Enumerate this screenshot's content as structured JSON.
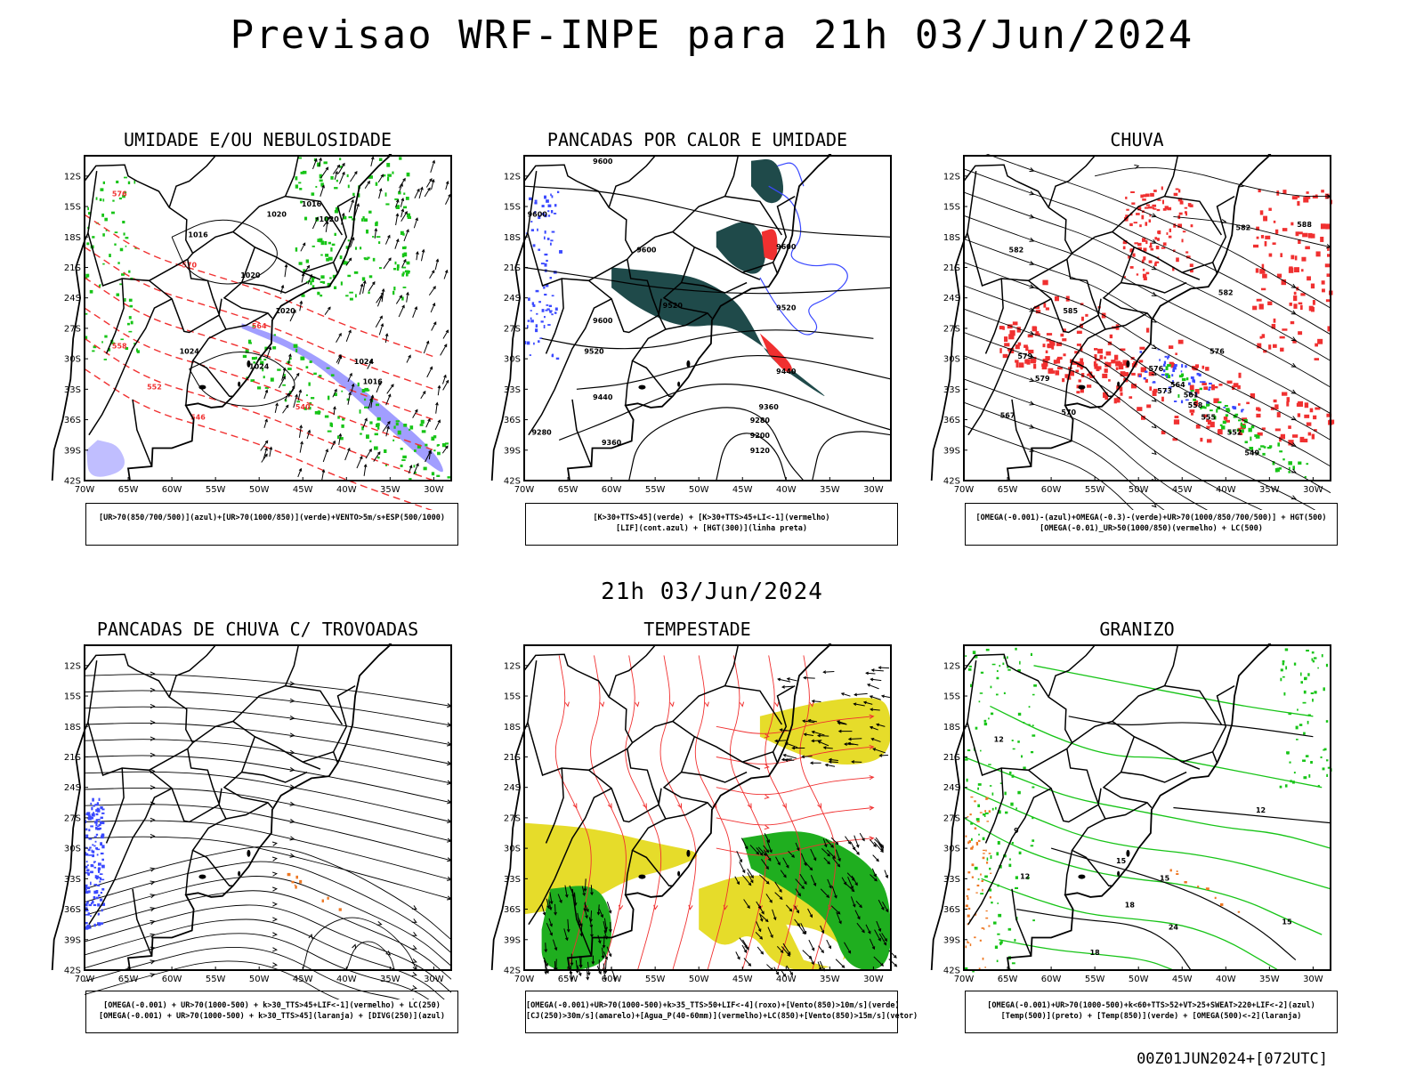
{
  "main_title": "Previsao WRF-INPE  para 21h 03/Jun/2024",
  "mid_title": "21h 03/Jun/2024",
  "footer": "00Z01JUN2024+[072UTC]",
  "colors": {
    "blue": "#3a49ff",
    "green": "#17c417",
    "red": "#f03030",
    "orange": "#ee7722",
    "yellow": "#e6dc2a",
    "dark_teal": "#1f4a4a",
    "purple": "#8a86ff",
    "black": "#000000"
  },
  "chart_data": [
    {
      "type": "heatmap",
      "title": "UMIDADE E/OU NEBULOSIDADE",
      "x_ticks": [
        "70W",
        "65W",
        "60W",
        "55W",
        "50W",
        "45W",
        "40W",
        "35W",
        "30W"
      ],
      "y_ticks": [
        "12S",
        "15S",
        "18S",
        "21S",
        "24S",
        "27S",
        "30S",
        "33S",
        "36S",
        "39S",
        "42S"
      ],
      "xlim": [
        -70,
        -28
      ],
      "ylim": [
        -42,
        -10
      ],
      "legend": [
        "[UR>70(850/700/500)](azul)+[UR>70(1000/850)](verde)+VENTO>5m/s+ESP(500/1000)"
      ],
      "contour_labels": [
        "1016",
        "1016",
        "1020",
        "1020",
        "1020",
        "1020",
        "1024",
        "1024",
        "1024",
        "1016",
        "576",
        "570",
        "564",
        "558",
        "552",
        "546",
        "540"
      ]
    },
    {
      "type": "heatmap",
      "title": "PANCADAS POR CALOR E UMIDADE",
      "x_ticks": [
        "70W",
        "65W",
        "60W",
        "55W",
        "50W",
        "45W",
        "40W",
        "35W",
        "30W"
      ],
      "y_ticks": [
        "12S",
        "15S",
        "18S",
        "21S",
        "24S",
        "27S",
        "30S",
        "33S",
        "36S",
        "39S",
        "42S"
      ],
      "xlim": [
        -70,
        -28
      ],
      "ylim": [
        -42,
        -10
      ],
      "legend": [
        "[K>30+TTS>45](verde) + [K>30+TTS>45+LI<-1](vermelho)",
        "[LIF](cont.azul) + [HGT(300)](linha preta)"
      ],
      "contour_labels": [
        "9600",
        "9600",
        "9600",
        "9520",
        "9600",
        "9520",
        "9520",
        "9440",
        "9440",
        "9360",
        "9280",
        "9280",
        "9200",
        "9120",
        "9360",
        "9600"
      ]
    },
    {
      "type": "heatmap",
      "title": "CHUVA",
      "x_ticks": [
        "70W",
        "65W",
        "60W",
        "55W",
        "50W",
        "45W",
        "40W",
        "35W",
        "30W"
      ],
      "y_ticks": [
        "12S",
        "15S",
        "18S",
        "21S",
        "24S",
        "27S",
        "30S",
        "33S",
        "36S",
        "39S",
        "42S"
      ],
      "xlim": [
        -70,
        -28
      ],
      "ylim": [
        -42,
        -10
      ],
      "legend": [
        "[OMEGA(-0.001)-(azul)+OMEGA(-0.3)-(verde)+UR>70(1000/850/700/500)] + HGT(500)",
        "[OMEGA(-0.01)_UR>50(1000/850)(vermelho) + LC(500)"
      ],
      "contour_labels": [
        "582",
        "588",
        "582",
        "579",
        "576",
        "573",
        "570",
        "567",
        "576",
        "564",
        "561",
        "558",
        "555",
        "552",
        "549",
        "582",
        "585",
        "579"
      ]
    },
    {
      "type": "heatmap",
      "title": "PANCADAS DE CHUVA C/ TROVOADAS",
      "x_ticks": [
        "70W",
        "65W",
        "60W",
        "55W",
        "50W",
        "45W",
        "40W",
        "35W",
        "30W"
      ],
      "y_ticks": [
        "12S",
        "15S",
        "18S",
        "21S",
        "24S",
        "27S",
        "30S",
        "33S",
        "36S",
        "39S",
        "42S"
      ],
      "xlim": [
        -70,
        -28
      ],
      "ylim": [
        -42,
        -10
      ],
      "legend": [
        "[OMEGA(-0.001) + UR>70(1000-500) + k>30_TTS>45+LIF<-1](vermelho) + LC(250)",
        "[OMEGA(-0.001) + UR>70(1000-500) + k>30_TTS>45](laranja) + [DIVG(250)](azul)"
      ]
    },
    {
      "type": "heatmap",
      "title": "TEMPESTADE",
      "x_ticks": [
        "70W",
        "65W",
        "60W",
        "55W",
        "50W",
        "45W",
        "40W",
        "35W",
        "30W"
      ],
      "y_ticks": [
        "12S",
        "15S",
        "18S",
        "21S",
        "24S",
        "27S",
        "30S",
        "33S",
        "36S",
        "39S",
        "42S"
      ],
      "xlim": [
        -70,
        -28
      ],
      "ylim": [
        -42,
        -10
      ],
      "legend": [
        "[OMEGA(-0.001)+UR>70(1000-500)+k>35_TTS>50+LIF<-4](roxo)+[Vento(850)>10m/s](verde)",
        "[CJ(250)>30m/s](amarelo)+[Agua_P(40-60mm)](vermelho)+LC(850)+[Vento(850)>15m/s](vetor)"
      ]
    },
    {
      "type": "heatmap",
      "title": "GRANIZO",
      "x_ticks": [
        "70W",
        "65W",
        "60W",
        "55W",
        "50W",
        "45W",
        "40W",
        "35W",
        "30W"
      ],
      "y_ticks": [
        "12S",
        "15S",
        "18S",
        "21S",
        "24S",
        "27S",
        "30S",
        "33S",
        "36S",
        "39S",
        "42S"
      ],
      "xlim": [
        -70,
        -28
      ],
      "ylim": [
        -42,
        -10
      ],
      "legend": [
        "[OMEGA(-0.001)+UR>70(1000-500)+k<60+TTS>52+VT>25+SWEAT>220+LIF<-2](azul)",
        "[Temp(500)](preto) + [Temp(850)](verde) + [OMEGA(500)<-2](laranja)"
      ],
      "contour_labels": [
        "12",
        "12",
        "15",
        "18",
        "18",
        "24",
        "15",
        "9",
        "12",
        "15"
      ]
    }
  ]
}
